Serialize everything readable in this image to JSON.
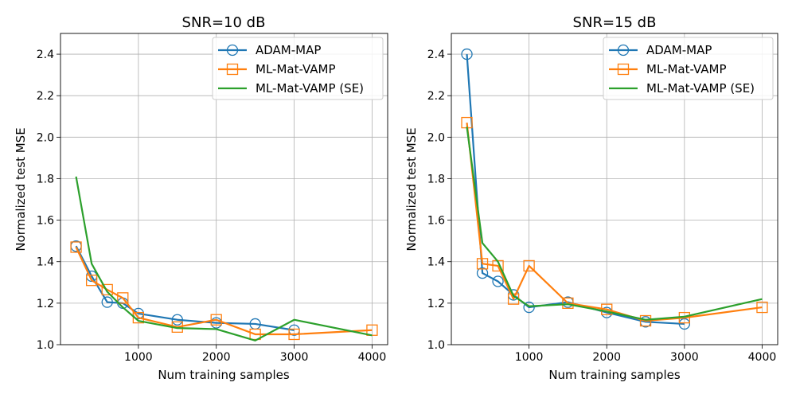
{
  "chart_data": [
    {
      "type": "line",
      "title": "SNR=10 dB",
      "xlabel": "Num training samples",
      "ylabel": "Normalized test MSE",
      "xlim": [
        0,
        4200
      ],
      "ylim": [
        1.0,
        2.5
      ],
      "xticks": [
        1000,
        2000,
        3000,
        4000
      ],
      "yticks": [
        1.0,
        1.2,
        1.4,
        1.6,
        1.8,
        2.0,
        2.2,
        2.4
      ],
      "grid": true,
      "legend_position": "top-right",
      "series": [
        {
          "name": "ADAM-MAP",
          "color": "#1f77b4",
          "marker": "circle",
          "x": [
            200,
            400,
            600,
            800,
            1000,
            1500,
            2000,
            2500,
            3000
          ],
          "y": [
            1.475,
            1.33,
            1.205,
            1.2,
            1.15,
            1.12,
            1.105,
            1.1,
            1.07
          ]
        },
        {
          "name": "ML-Mat-VAMP",
          "color": "#ff7f0e",
          "marker": "square",
          "x": [
            200,
            400,
            600,
            800,
            1000,
            1500,
            2000,
            2500,
            3000,
            4000
          ],
          "y": [
            1.47,
            1.31,
            1.265,
            1.225,
            1.13,
            1.085,
            1.12,
            1.05,
            1.05,
            1.07
          ]
        },
        {
          "name": "ML-Mat-VAMP (SE)",
          "color": "#2ca02c",
          "marker": "none",
          "x": [
            200,
            400,
            600,
            800,
            1000,
            1500,
            2000,
            2500,
            3000,
            4000
          ],
          "y": [
            1.81,
            1.39,
            1.255,
            1.18,
            1.115,
            1.08,
            1.075,
            1.02,
            1.12,
            1.045
          ]
        }
      ]
    },
    {
      "type": "line",
      "title": "SNR=15 dB",
      "xlabel": "Num training samples",
      "ylabel": "Normalized test MSE",
      "xlim": [
        0,
        4200
      ],
      "ylim": [
        1.0,
        2.5
      ],
      "xticks": [
        1000,
        2000,
        3000,
        4000
      ],
      "yticks": [
        1.0,
        1.2,
        1.4,
        1.6,
        1.8,
        2.0,
        2.2,
        2.4
      ],
      "grid": true,
      "legend_position": "top-right",
      "series": [
        {
          "name": "ADAM-MAP",
          "color": "#1f77b4",
          "marker": "circle",
          "x": [
            200,
            400,
            600,
            800,
            1000,
            1500,
            2000,
            2500,
            3000
          ],
          "y": [
            2.4,
            1.345,
            1.305,
            1.24,
            1.18,
            1.205,
            1.155,
            1.11,
            1.1
          ]
        },
        {
          "name": "ML-Mat-VAMP",
          "color": "#ff7f0e",
          "marker": "square",
          "x": [
            200,
            400,
            600,
            800,
            1000,
            1500,
            2000,
            2500,
            3000,
            4000
          ],
          "y": [
            2.07,
            1.39,
            1.38,
            1.22,
            1.38,
            1.2,
            1.17,
            1.115,
            1.13,
            1.18
          ]
        },
        {
          "name": "ML-Mat-VAMP (SE)",
          "color": "#2ca02c",
          "marker": "none",
          "x": [
            200,
            400,
            600,
            800,
            1000,
            1500,
            2000,
            2500,
            3000,
            4000
          ],
          "y": [
            2.05,
            1.49,
            1.4,
            1.235,
            1.185,
            1.195,
            1.16,
            1.12,
            1.135,
            1.22
          ]
        }
      ]
    }
  ]
}
